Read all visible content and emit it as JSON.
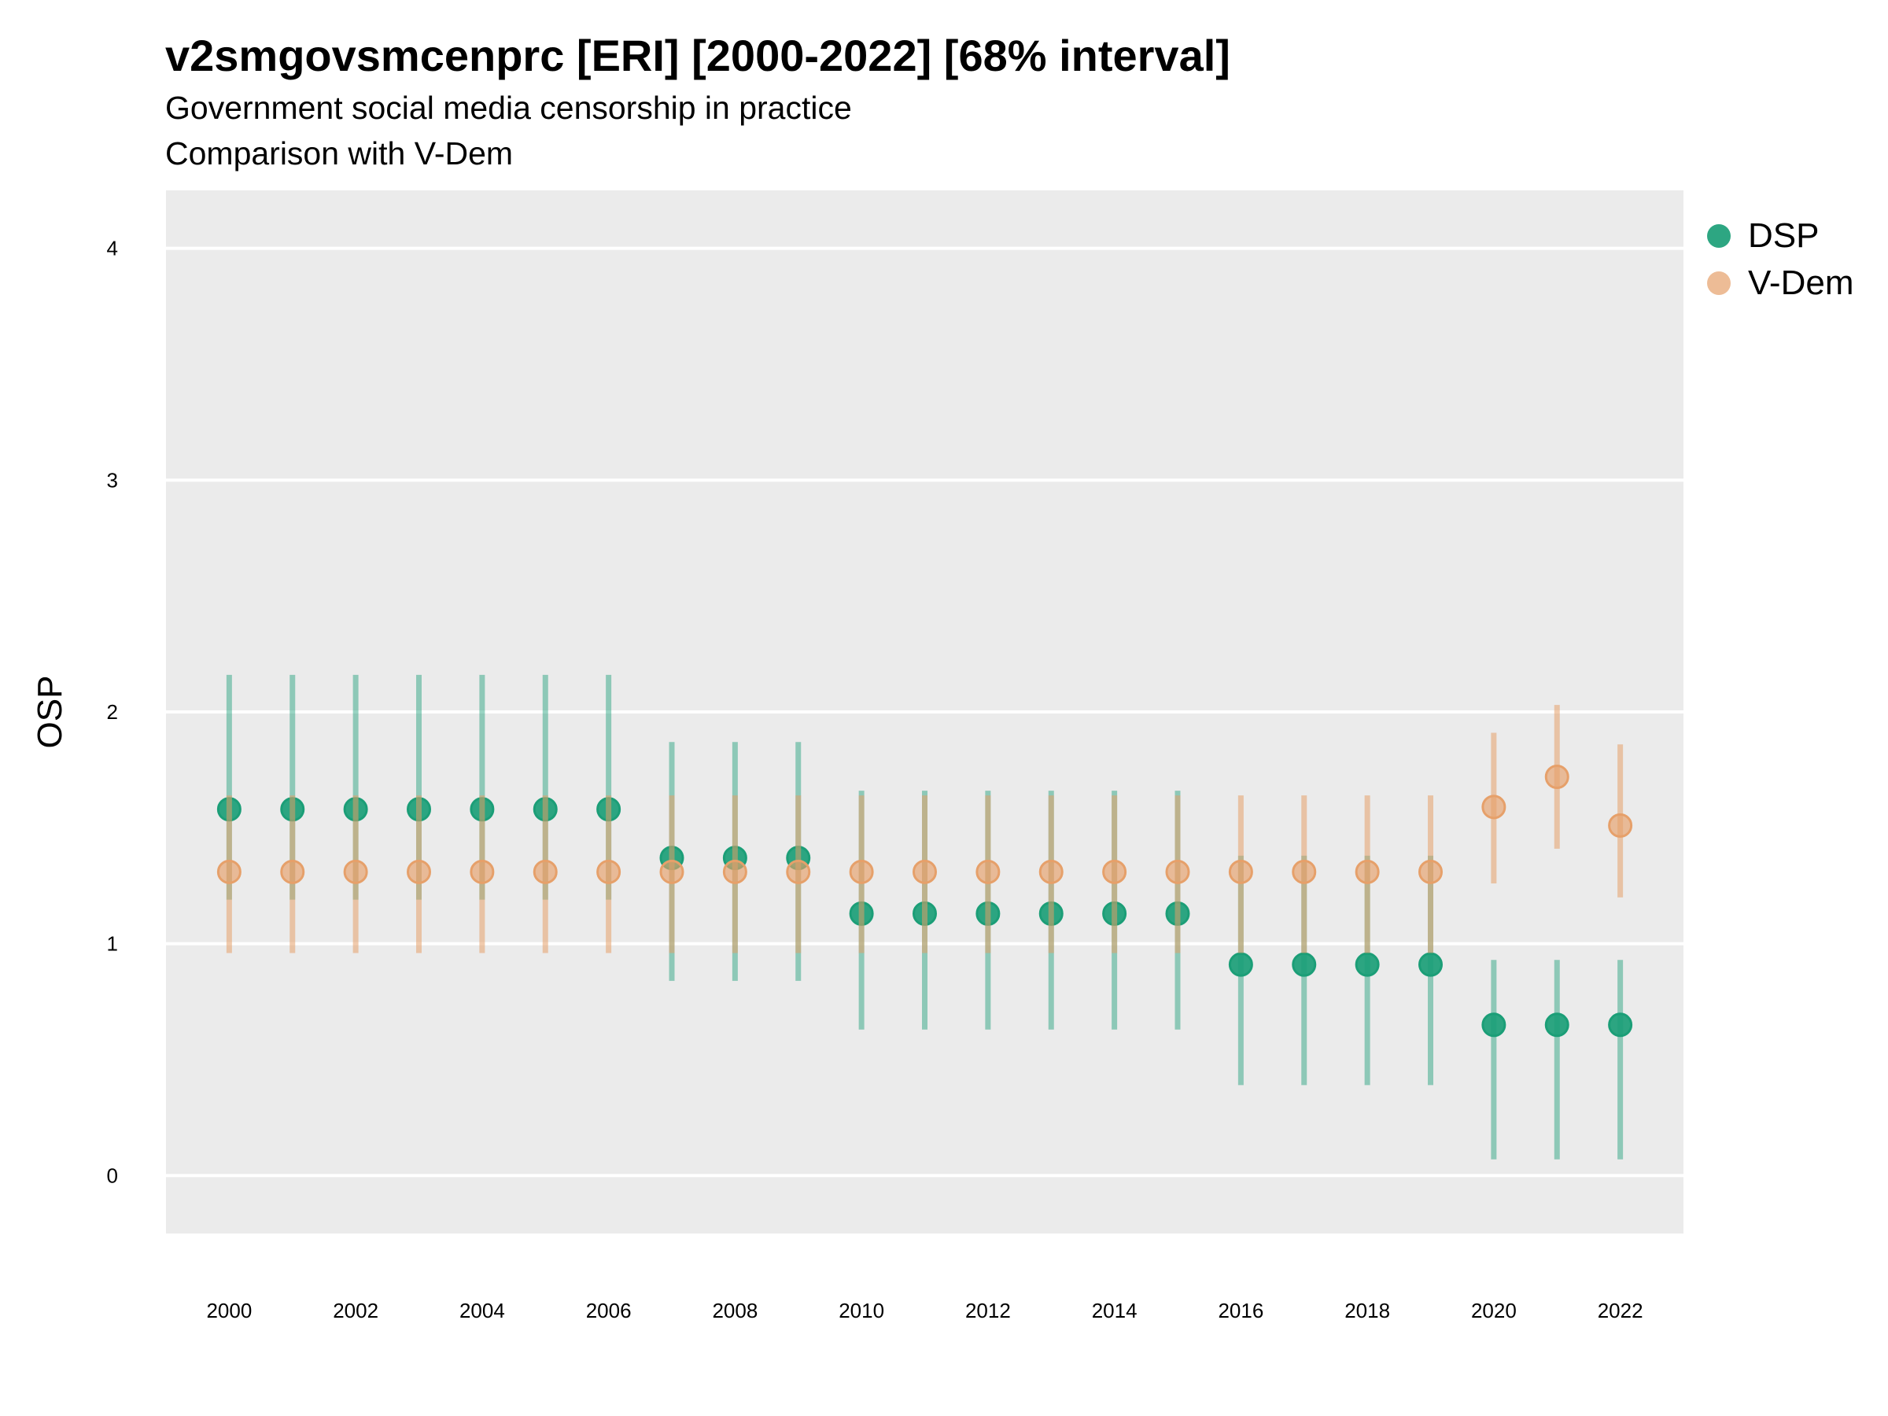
{
  "title": "v2smgovsmcenprc [ERI] [2000-2022] [68% interval]",
  "subtitle_lines": [
    "Government social media censorship in practice",
    "Comparison with V-Dem"
  ],
  "colors": {
    "DSP": "#1b9e77",
    "V-Dem": "#e6a06a",
    "panel": "#ebebeb",
    "grid": "#ffffff"
  },
  "chart_data": {
    "type": "scatter",
    "xlabel": "",
    "ylabel": "OSP",
    "xlim": [
      1999,
      2023
    ],
    "ylim": [
      -0.25,
      4.25
    ],
    "x_ticks": [
      2000,
      2002,
      2004,
      2006,
      2008,
      2010,
      2012,
      2014,
      2016,
      2018,
      2020,
      2022
    ],
    "y_ticks": [
      0,
      1,
      2,
      3,
      4
    ],
    "grid": true,
    "legend_position": "right",
    "x": [
      2000,
      2001,
      2002,
      2003,
      2004,
      2005,
      2006,
      2007,
      2008,
      2009,
      2010,
      2011,
      2012,
      2013,
      2014,
      2015,
      2016,
      2017,
      2018,
      2019,
      2020,
      2021,
      2022
    ],
    "series": [
      {
        "name": "DSP",
        "values": [
          1.58,
          1.58,
          1.58,
          1.58,
          1.58,
          1.58,
          1.58,
          1.37,
          1.37,
          1.37,
          1.13,
          1.13,
          1.13,
          1.13,
          1.13,
          1.13,
          0.91,
          0.91,
          0.91,
          0.91,
          0.65,
          0.65,
          0.65
        ],
        "lower": [
          1.19,
          1.19,
          1.19,
          1.19,
          1.19,
          1.19,
          1.19,
          0.84,
          0.84,
          0.84,
          0.63,
          0.63,
          0.63,
          0.63,
          0.63,
          0.63,
          0.39,
          0.39,
          0.39,
          0.39,
          0.07,
          0.07,
          0.07
        ],
        "upper": [
          2.16,
          2.16,
          2.16,
          2.16,
          2.16,
          2.16,
          2.16,
          1.87,
          1.87,
          1.87,
          1.66,
          1.66,
          1.66,
          1.66,
          1.66,
          1.66,
          1.38,
          1.38,
          1.38,
          1.38,
          0.93,
          0.93,
          0.93
        ]
      },
      {
        "name": "V-Dem",
        "values": [
          1.31,
          1.31,
          1.31,
          1.31,
          1.31,
          1.31,
          1.31,
          1.31,
          1.31,
          1.31,
          1.31,
          1.31,
          1.31,
          1.31,
          1.31,
          1.31,
          1.31,
          1.31,
          1.31,
          1.31,
          1.59,
          1.72,
          1.51
        ],
        "lower": [
          0.96,
          0.96,
          0.96,
          0.96,
          0.96,
          0.96,
          0.96,
          0.96,
          0.96,
          0.96,
          0.96,
          0.96,
          0.96,
          0.96,
          0.96,
          0.96,
          0.96,
          0.96,
          0.96,
          0.96,
          1.26,
          1.41,
          1.2
        ],
        "upper": [
          1.64,
          1.64,
          1.64,
          1.64,
          1.64,
          1.64,
          1.64,
          1.64,
          1.64,
          1.64,
          1.64,
          1.64,
          1.64,
          1.64,
          1.64,
          1.64,
          1.64,
          1.64,
          1.64,
          1.64,
          1.91,
          2.03,
          1.86
        ]
      }
    ]
  }
}
